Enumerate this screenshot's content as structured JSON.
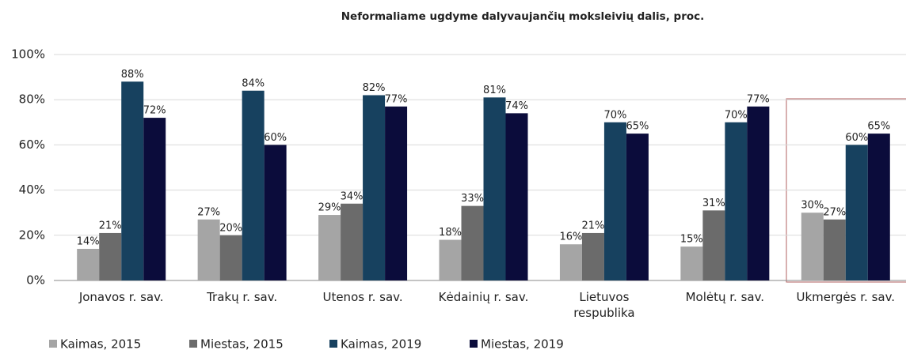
{
  "chart_data": {
    "type": "bar",
    "title": "Neformaliame ugdyme dalyvaujančių moksleivių dalis, proc.",
    "categories": [
      "Jonavos r. sav.",
      "Trakų r. sav.",
      "Utenos r. sav.",
      "Kėdainių r. sav.",
      "Lietuvos respublika",
      "Molėtų r. sav.",
      "Ukmergės r. sav."
    ],
    "series": [
      {
        "name": "Kaimas, 2015",
        "color": "#a5a5a5",
        "values": [
          14,
          27,
          29,
          18,
          16,
          15,
          30
        ],
        "value_labels": [
          "14%",
          "27%",
          "29%",
          "18%",
          "16%",
          "15%",
          "30%"
        ]
      },
      {
        "name": "Miestas, 2015",
        "color": "#6b6b6b",
        "values": [
          21,
          20,
          34,
          33,
          21,
          31,
          27
        ],
        "value_labels": [
          "21%",
          "20%",
          "34%",
          "33%",
          "21%",
          "31%",
          "27%"
        ]
      },
      {
        "name": "Kaimas, 2019",
        "color": "#17415f",
        "values": [
          88,
          84,
          82,
          81,
          70,
          70,
          60
        ],
        "value_labels": [
          "88%",
          "84%",
          "82%",
          "81%",
          "70%",
          "70%",
          "60%"
        ]
      },
      {
        "name": "Miestas, 2019",
        "color": "#0b0c3b",
        "values": [
          72,
          60,
          77,
          74,
          65,
          77,
          65
        ],
        "value_labels": [
          "72%",
          "60%",
          "77%",
          "74%",
          "65%",
          "77%",
          "65%"
        ]
      }
    ],
    "ylim": [
      0,
      100
    ],
    "yticks": [
      {
        "value": 0,
        "label": "0%"
      },
      {
        "value": 20,
        "label": "20%"
      },
      {
        "value": 40,
        "label": "40%"
      },
      {
        "value": 60,
        "label": "60%"
      },
      {
        "value": 80,
        "label": "80%"
      },
      {
        "value": 100,
        "label": "100%"
      }
    ],
    "grid": true
  }
}
